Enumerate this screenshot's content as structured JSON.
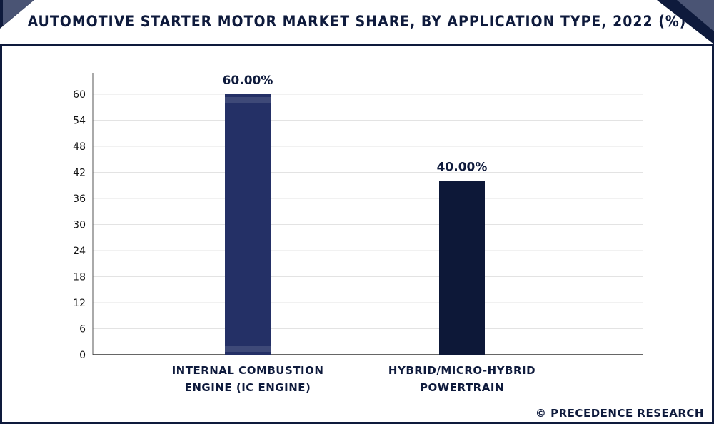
{
  "header": {
    "title": "AUTOMOTIVE STARTER MOTOR MARKET SHARE, BY APPLICATION TYPE, 2022 (%)"
  },
  "footer": {
    "credit": "© PRECEDENCE RESEARCH"
  },
  "colors": {
    "frame": "#0e1a3c",
    "bar_ic_engine": "#243066",
    "bar_hybrid": "#0d1838",
    "grid": "#e3e3e3"
  },
  "chart_data": {
    "type": "bar",
    "title": "AUTOMOTIVE STARTER MOTOR MARKET SHARE, BY APPLICATION TYPE, 2022 (%)",
    "categories": [
      "INTERNAL COMBUSTION\nENGINE (IC ENGINE)",
      "HYBRID/MICRO-HYBRID\nPOWERTRAIN"
    ],
    "values": [
      60,
      40
    ],
    "value_labels": [
      "60.00%",
      "40.00%"
    ],
    "xlabel": "",
    "ylabel": "",
    "ylim": [
      0,
      60
    ],
    "yticks": [
      "0",
      "6",
      "12",
      "18",
      "24",
      "30",
      "36",
      "42",
      "48",
      "54",
      "60"
    ],
    "grid": true,
    "legend": "none"
  }
}
